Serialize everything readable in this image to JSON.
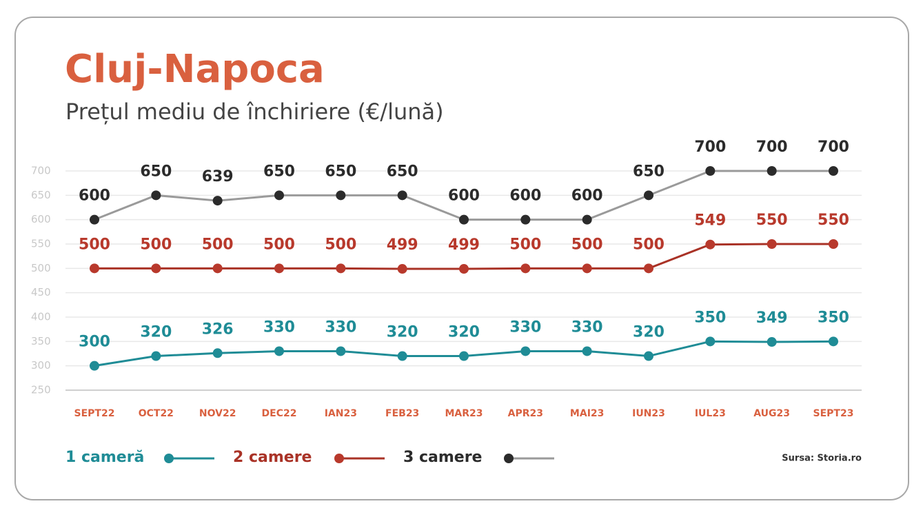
{
  "chart_data": {
    "type": "line",
    "title": "Cluj-Napoca",
    "subtitle": "Prețul mediu de închiriere (€/lună)",
    "source": "Sursa: Storia.ro",
    "categories": [
      "SEPT22",
      "OCT22",
      "NOV22",
      "DEC22",
      "IAN23",
      "FEB23",
      "MAR23",
      "APR23",
      "MAI23",
      "IUN23",
      "IUL23",
      "AUG23",
      "SEPT23"
    ],
    "series": [
      {
        "name": "1 cameră",
        "color": "#1f8c96",
        "marker_color": "#1f8c96",
        "values": [
          300,
          320,
          326,
          330,
          330,
          320,
          320,
          330,
          330,
          320,
          350,
          349,
          350
        ]
      },
      {
        "name": "2 camere",
        "color": "#a93226",
        "marker_color": "#b8392c",
        "values": [
          500,
          500,
          500,
          500,
          500,
          499,
          499,
          500,
          500,
          500,
          549,
          550,
          550
        ]
      },
      {
        "name": "3 camere",
        "color": "#9a9a9a",
        "marker_color": "#2b2b2b",
        "values": [
          600,
          650,
          639,
          650,
          650,
          650,
          600,
          600,
          600,
          650,
          700,
          700,
          700
        ]
      }
    ],
    "ylim": [
      250,
      700
    ],
    "yticks": [
      250,
      300,
      350,
      400,
      450,
      500,
      550,
      600,
      650,
      700
    ],
    "grid": true
  }
}
